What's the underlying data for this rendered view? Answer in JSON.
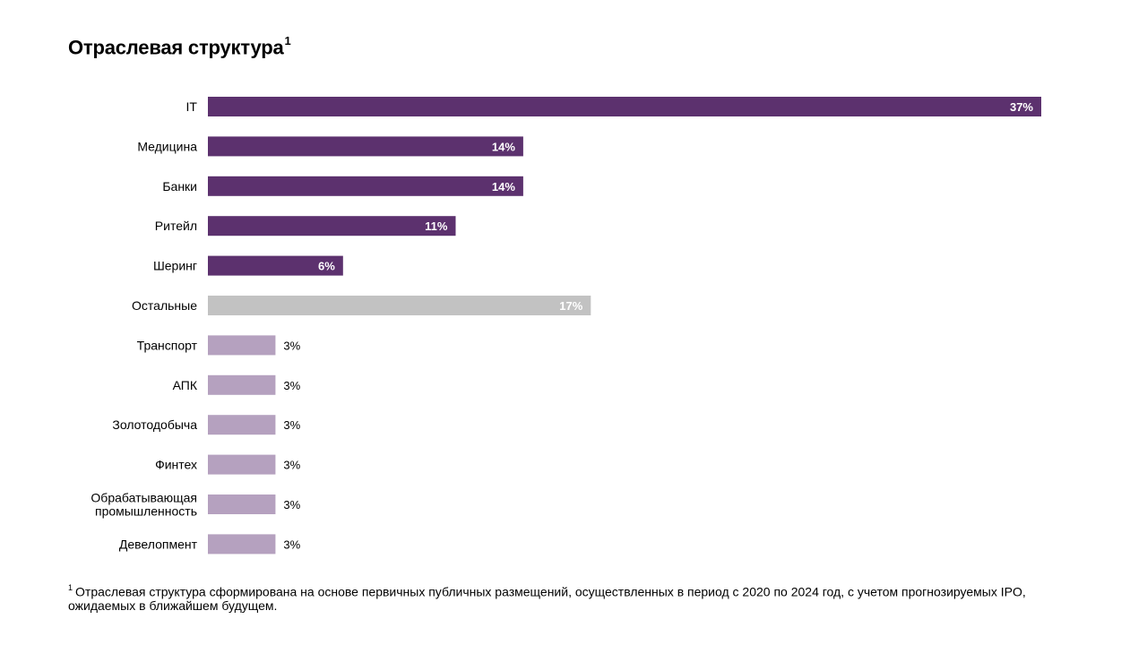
{
  "title": {
    "text": "Отраслевая структура",
    "superscript": "1"
  },
  "footnote": {
    "marker": "1",
    "text": "Отраслевая структура сформирована на основе первичных публичных размещений, осуществленных в период с 2020 по 2024 год, с учетом прогнозируемых IPO, ожидаемых в ближайшем будущем."
  },
  "colors": {
    "primary": "#5c316e",
    "other": "#c2c2c2",
    "light": "#b5a1bf",
    "label_inside": "#ffffff",
    "label_outside": "#000000"
  },
  "chart_data": {
    "type": "bar",
    "orientation": "horizontal",
    "title": "Отраслевая структура",
    "categories": [
      "IT",
      "Медицина",
      "Банки",
      "Ритейл",
      "Шеринг",
      "Остальные",
      "Транспорт",
      "АПК",
      "Золотодобыча",
      "Финтех",
      "Обрабатывающая промышленность",
      "Девелопмент"
    ],
    "category_lines": [
      [
        "IT"
      ],
      [
        "Медицина"
      ],
      [
        "Банки"
      ],
      [
        "Ритейл"
      ],
      [
        "Шеринг"
      ],
      [
        "Остальные"
      ],
      [
        "Транспорт"
      ],
      [
        "АПК"
      ],
      [
        "Золотодобыча"
      ],
      [
        "Финтех"
      ],
      [
        "Обрабатывающая",
        "промышленность"
      ],
      [
        "Девелопмент"
      ]
    ],
    "values": [
      37,
      14,
      14,
      11,
      6,
      17,
      3,
      3,
      3,
      3,
      3,
      3
    ],
    "labels": [
      "37%",
      "14%",
      "14%",
      "11%",
      "6%",
      "17%",
      "3%",
      "3%",
      "3%",
      "3%",
      "3%",
      "3%"
    ],
    "groups": [
      "primary",
      "primary",
      "primary",
      "primary",
      "primary",
      "other",
      "light",
      "light",
      "light",
      "light",
      "light",
      "light"
    ],
    "unit": "%",
    "xlim": [
      0,
      37
    ],
    "grid": false,
    "legend": false
  }
}
